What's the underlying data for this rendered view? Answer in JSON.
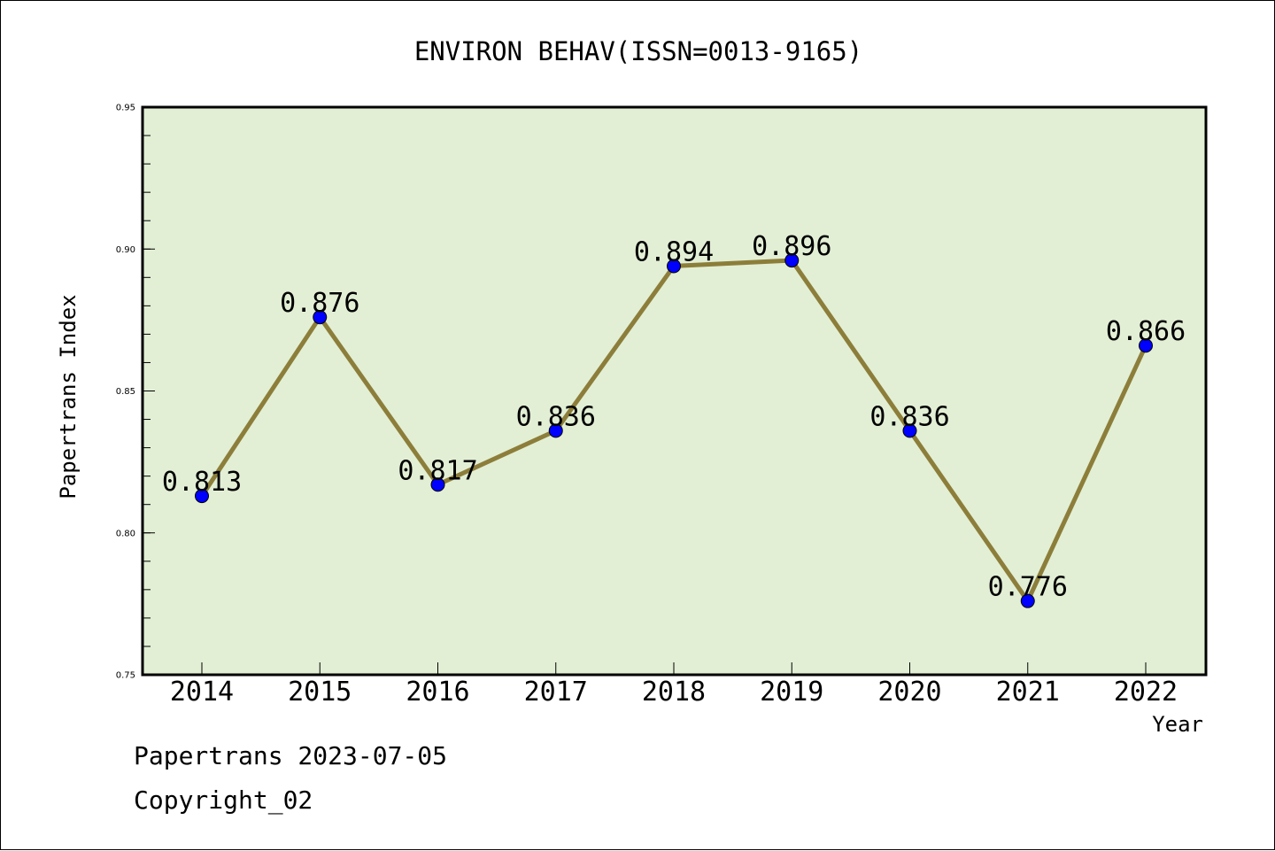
{
  "chart_data": {
    "type": "line",
    "title": "ENVIRON BEHAV(ISSN=0013-9165)",
    "xlabel": "Year",
    "ylabel": "Papertrans Index",
    "categories": [
      "2014",
      "2015",
      "2016",
      "2017",
      "2018",
      "2019",
      "2020",
      "2021",
      "2022"
    ],
    "series": [
      {
        "values": [
          0.813,
          0.876,
          0.817,
          0.836,
          0.894,
          0.896,
          0.836,
          0.776,
          0.866
        ],
        "labels": [
          "0.813",
          "0.876",
          "0.817",
          "0.836",
          "0.894",
          "0.896",
          "0.836",
          "0.776",
          "0.866"
        ]
      }
    ],
    "ylim": [
      0.75,
      0.95
    ],
    "yticks": [
      "0.75",
      "0.80",
      "0.85",
      "0.90",
      "0.95"
    ],
    "grid": false,
    "legend": "none",
    "colors": {
      "plot_background": "#e2efd5",
      "line": "#8c7e3a",
      "marker": "#0000ff"
    }
  },
  "footer": {
    "line1": "Papertrans 2023-07-05",
    "line2": "Copyright_02"
  }
}
